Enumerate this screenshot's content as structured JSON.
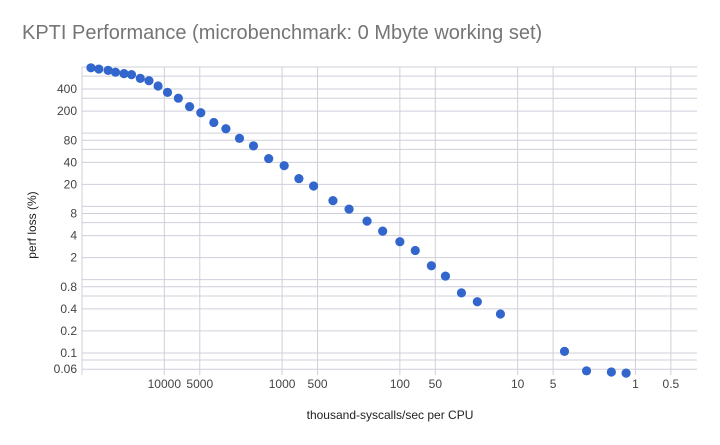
{
  "chart_data": {
    "type": "scatter",
    "title": "KPTI Performance (microbenchmark: 0 Mbyte working set)",
    "xlabel": "thousand-syscalls/sec per CPU",
    "ylabel": "perf loss (%)",
    "x_scale": "log",
    "x_reversed": true,
    "y_scale": "log",
    "xlim": [
      50000,
      0.3
    ],
    "ylim": [
      0.05,
      800
    ],
    "x_ticks": [
      {
        "value": 10000,
        "label": "10000"
      },
      {
        "value": 5000,
        "label": "5000"
      },
      {
        "value": 1000,
        "label": "1000"
      },
      {
        "value": 500,
        "label": "500"
      },
      {
        "value": 100,
        "label": "100"
      },
      {
        "value": 50,
        "label": "50"
      },
      {
        "value": 10,
        "label": "10"
      },
      {
        "value": 5,
        "label": "5"
      },
      {
        "value": 1,
        "label": "1"
      },
      {
        "value": 0.5,
        "label": "0.5"
      }
    ],
    "y_ticks": [
      {
        "value": 400,
        "label": "400"
      },
      {
        "value": 200,
        "label": "200"
      },
      {
        "value": 80,
        "label": "80"
      },
      {
        "value": 40,
        "label": "40"
      },
      {
        "value": 20,
        "label": "20"
      },
      {
        "value": 8,
        "label": "8"
      },
      {
        "value": 4,
        "label": "4"
      },
      {
        "value": 2,
        "label": "2"
      },
      {
        "value": 0.8,
        "label": "0.8"
      },
      {
        "value": 0.4,
        "label": "0.4"
      },
      {
        "value": 0.2,
        "label": "0.2"
      },
      {
        "value": 0.1,
        "label": "0.1"
      },
      {
        "value": 0.06,
        "label": "0.06"
      }
    ],
    "y_gridlines": [
      800,
      600,
      400,
      300,
      200,
      100,
      80,
      60,
      40,
      20,
      10,
      8,
      6,
      4,
      2,
      1,
      0.8,
      0.6,
      0.4,
      0.2,
      0.1,
      0.08,
      0.06
    ],
    "grid": true,
    "series": [
      {
        "color": "#3366cc",
        "points": [
          {
            "x": 42000,
            "y": 780
          },
          {
            "x": 36000,
            "y": 750
          },
          {
            "x": 30000,
            "y": 720
          },
          {
            "x": 26000,
            "y": 680
          },
          {
            "x": 22000,
            "y": 650
          },
          {
            "x": 19000,
            "y": 630
          },
          {
            "x": 16000,
            "y": 560
          },
          {
            "x": 13500,
            "y": 520
          },
          {
            "x": 11300,
            "y": 440
          },
          {
            "x": 9400,
            "y": 360
          },
          {
            "x": 7600,
            "y": 300
          },
          {
            "x": 6100,
            "y": 230
          },
          {
            "x": 4900,
            "y": 190
          },
          {
            "x": 3800,
            "y": 140
          },
          {
            "x": 3000,
            "y": 115
          },
          {
            "x": 2300,
            "y": 85
          },
          {
            "x": 1750,
            "y": 67
          },
          {
            "x": 1300,
            "y": 45
          },
          {
            "x": 960,
            "y": 36
          },
          {
            "x": 720,
            "y": 24
          },
          {
            "x": 540,
            "y": 19
          },
          {
            "x": 370,
            "y": 12
          },
          {
            "x": 270,
            "y": 9.2
          },
          {
            "x": 190,
            "y": 6.3
          },
          {
            "x": 140,
            "y": 4.6
          },
          {
            "x": 100,
            "y": 3.3
          },
          {
            "x": 74,
            "y": 2.5
          },
          {
            "x": 54,
            "y": 1.55
          },
          {
            "x": 41,
            "y": 1.12
          },
          {
            "x": 30,
            "y": 0.66
          },
          {
            "x": 22,
            "y": 0.5
          },
          {
            "x": 14,
            "y": 0.34
          },
          {
            "x": 4,
            "y": 0.105
          },
          {
            "x": 2.6,
            "y": 0.057
          },
          {
            "x": 1.6,
            "y": 0.055
          },
          {
            "x": 1.2,
            "y": 0.053
          }
        ]
      }
    ]
  }
}
